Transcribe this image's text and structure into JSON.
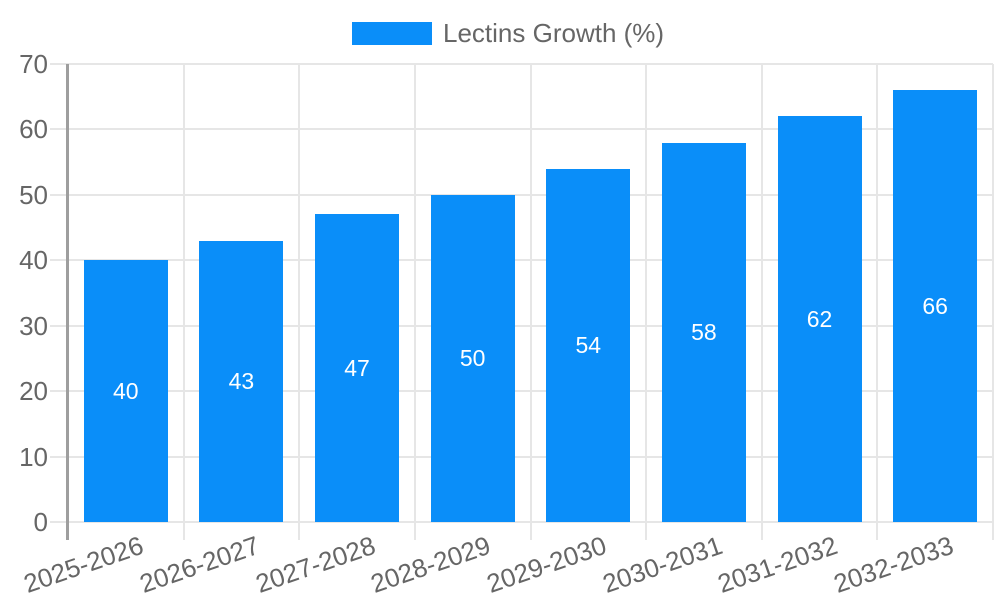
{
  "legend": {
    "label": "Lectins Growth (%)"
  },
  "colors": {
    "bar": "#0a8ef9",
    "bar_value_label": "#ffffff",
    "axis_label": "#666666",
    "gridline": "#e6e6e6",
    "axis_line": "#9e9e9e",
    "background": "#ffffff"
  },
  "chart_data": {
    "type": "bar",
    "title": "Lectins Growth (%)",
    "categories": [
      "2025-2026",
      "2026-2027",
      "2027-2028",
      "2028-2029",
      "2029-2030",
      "2030-2031",
      "2031-2032",
      "2032-2033"
    ],
    "series": [
      {
        "name": "Lectins Growth (%)",
        "values": [
          40,
          43,
          47,
          50,
          54,
          58,
          62,
          66
        ]
      }
    ],
    "xlabel": "",
    "ylabel": "",
    "ylim": [
      0,
      70
    ],
    "yticks": [
      0,
      10,
      20,
      30,
      40,
      50,
      60,
      70
    ],
    "grid": true,
    "legend_position": "top-center",
    "bar_value_labels_shown": true,
    "x_tick_label_rotation_deg": -19
  }
}
